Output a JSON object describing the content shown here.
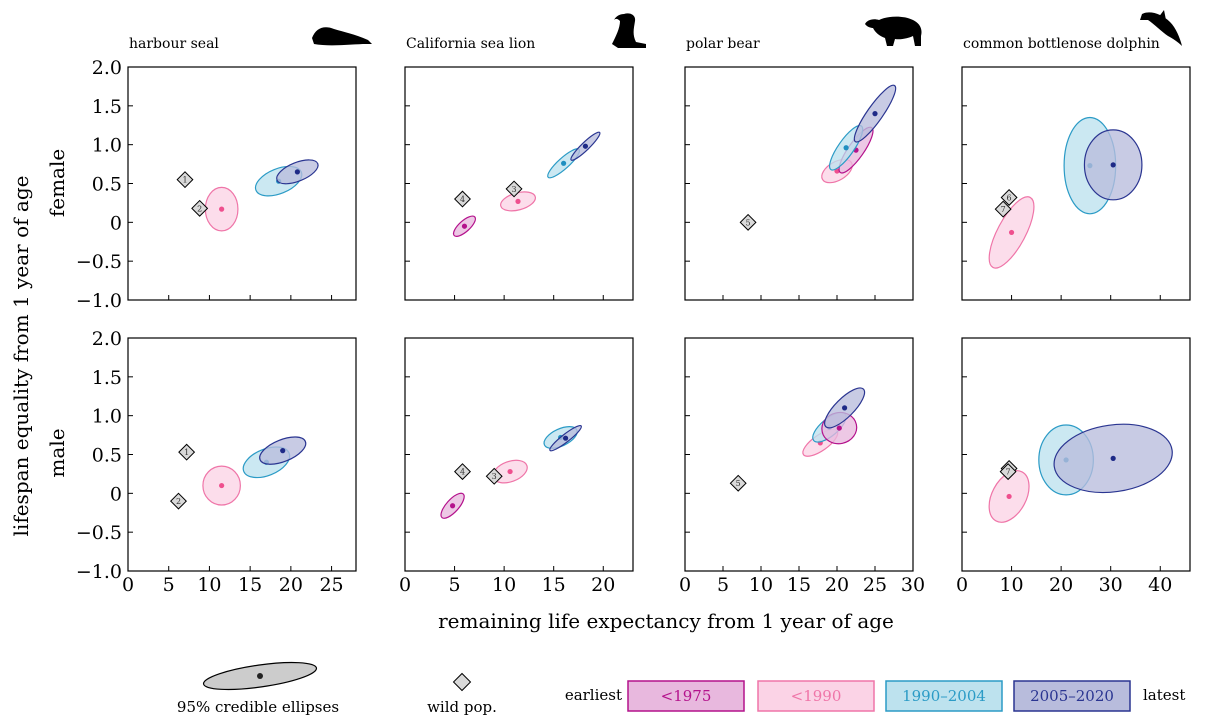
{
  "figure": {
    "xlabel": "remaining life expectancy from 1 year of age",
    "ylabel": "lifespan equality from 1 year of age",
    "row_labels": [
      "female",
      "male"
    ]
  },
  "legend": {
    "ellipse_label": "95% credible ellipses",
    "wild_label": "wild pop.",
    "earliest": "earliest",
    "latest": "latest",
    "periods": [
      {
        "label": "<1975",
        "fill": "#e8b8de",
        "stroke": "#b4128c",
        "dot": "#b4128c"
      },
      {
        "label": "<1990",
        "fill": "#fbd3e6",
        "stroke": "#ef75a8",
        "dot": "#ef4f8e"
      },
      {
        "label": "1990–2004",
        "fill": "#bde2ee",
        "stroke": "#2b9bc6",
        "dot": "#1f8fc0"
      },
      {
        "label": "2005–2020",
        "fill": "#b8bcdc",
        "stroke": "#2a3591",
        "dot": "#1e2a87"
      }
    ]
  },
  "chart_data": [
    {
      "type": "scatter",
      "title": "harbour seal",
      "row": "female",
      "xlim": [
        0,
        28
      ],
      "ylim": [
        -1,
        2
      ],
      "wild": [
        {
          "x": 7,
          "y": 0.55,
          "label": "1"
        },
        {
          "x": 8.8,
          "y": 0.18,
          "label": "2"
        }
      ],
      "ellipses": [
        {
          "period": 1,
          "x": 11.5,
          "y": 0.17,
          "rx": 2.0,
          "ry": 0.28,
          "angle": 0
        },
        {
          "period": 2,
          "x": 18.5,
          "y": 0.53,
          "rx": 3.0,
          "ry": 0.16,
          "angle": 22
        },
        {
          "period": 3,
          "x": 20.8,
          "y": 0.65,
          "rx": 2.7,
          "ry": 0.12,
          "angle": 22
        }
      ]
    },
    {
      "type": "scatter",
      "title": "California sea lion",
      "row": "female",
      "xlim": [
        0,
        23
      ],
      "ylim": [
        -1,
        2
      ],
      "wild": [
        {
          "x": 5.8,
          "y": 0.3,
          "label": "4"
        },
        {
          "x": 11,
          "y": 0.43,
          "label": "3"
        }
      ],
      "ellipses": [
        {
          "period": 0,
          "x": 6.0,
          "y": -0.05,
          "rx": 1.4,
          "ry": 0.07,
          "angle": 42
        },
        {
          "period": 1,
          "x": 11.4,
          "y": 0.27,
          "rx": 1.8,
          "ry": 0.11,
          "angle": 15
        },
        {
          "period": 2,
          "x": 16.0,
          "y": 0.76,
          "rx": 2.1,
          "ry": 0.07,
          "angle": 42
        },
        {
          "period": 3,
          "x": 18.2,
          "y": 0.98,
          "rx": 2.0,
          "ry": 0.05,
          "angle": 44
        }
      ]
    },
    {
      "type": "scatter",
      "title": "polar bear",
      "row": "female",
      "xlim": [
        0,
        30
      ],
      "ylim": [
        -1,
        2
      ],
      "wild": [
        {
          "x": 8.3,
          "y": 0.0,
          "label": "5"
        }
      ],
      "ellipses": [
        {
          "period": 1,
          "x": 20.0,
          "y": 0.66,
          "rx": 2.2,
          "ry": 0.12,
          "angle": 30
        },
        {
          "period": 0,
          "x": 22.5,
          "y": 0.93,
          "rx": 3.6,
          "ry": 0.1,
          "angle": 55
        },
        {
          "period": 2,
          "x": 21.2,
          "y": 0.96,
          "rx": 3.5,
          "ry": 0.1,
          "angle": 55
        },
        {
          "period": 3,
          "x": 25.0,
          "y": 1.4,
          "rx": 4.5,
          "ry": 0.1,
          "angle": 55
        }
      ]
    },
    {
      "type": "scatter",
      "title": "common bottlenose dolphin",
      "row": "female",
      "xlim": [
        0,
        46
      ],
      "ylim": [
        -1,
        2
      ],
      "wild": [
        {
          "x": 9.5,
          "y": 0.32,
          "label": "6"
        },
        {
          "x": 8.3,
          "y": 0.17,
          "label": "7"
        }
      ],
      "ellipses": [
        {
          "period": 1,
          "x": 10.0,
          "y": -0.13,
          "rx": 8.0,
          "ry": 0.18,
          "angle": 62
        },
        {
          "period": 2,
          "x": 25.8,
          "y": 0.73,
          "rx": 5.2,
          "ry": 0.62,
          "angle": 0
        },
        {
          "period": 3,
          "x": 30.5,
          "y": 0.74,
          "rx": 5.8,
          "ry": 0.45,
          "angle": 0
        }
      ]
    },
    {
      "type": "scatter",
      "title": "harbour seal",
      "row": "male",
      "xlim": [
        0,
        28
      ],
      "ylim": [
        -1,
        2
      ],
      "wild": [
        {
          "x": 7.2,
          "y": 0.53,
          "label": "1"
        },
        {
          "x": 6.2,
          "y": -0.1,
          "label": "2"
        }
      ],
      "ellipses": [
        {
          "period": 1,
          "x": 11.5,
          "y": 0.1,
          "rx": 2.3,
          "ry": 0.25,
          "angle": 0
        },
        {
          "period": 2,
          "x": 17.0,
          "y": 0.4,
          "rx": 3.0,
          "ry": 0.17,
          "angle": 22
        },
        {
          "period": 3,
          "x": 19.0,
          "y": 0.55,
          "rx": 3.0,
          "ry": 0.14,
          "angle": 22
        }
      ]
    },
    {
      "type": "scatter",
      "title": "California sea lion",
      "row": "male",
      "xlim": [
        0,
        23
      ],
      "ylim": [
        -1,
        2
      ],
      "wild": [
        {
          "x": 5.8,
          "y": 0.28,
          "label": "4"
        },
        {
          "x": 9.0,
          "y": 0.22,
          "label": "3"
        }
      ],
      "ellipses": [
        {
          "period": 0,
          "x": 4.8,
          "y": -0.16,
          "rx": 1.6,
          "ry": 0.08,
          "angle": 48
        },
        {
          "period": 1,
          "x": 10.6,
          "y": 0.28,
          "rx": 1.8,
          "ry": 0.13,
          "angle": 20
        },
        {
          "period": 2,
          "x": 15.7,
          "y": 0.72,
          "rx": 1.8,
          "ry": 0.11,
          "angle": 25
        },
        {
          "period": 3,
          "x": 16.2,
          "y": 0.71,
          "rx": 2.0,
          "ry": 0.05,
          "angle": 38
        }
      ]
    },
    {
      "type": "scatter",
      "title": "polar bear",
      "row": "male",
      "xlim": [
        0,
        30
      ],
      "ylim": [
        -1,
        2
      ],
      "wild": [
        {
          "x": 7.0,
          "y": 0.13,
          "label": "5"
        }
      ],
      "ellipses": [
        {
          "period": 1,
          "x": 17.8,
          "y": 0.65,
          "rx": 2.7,
          "ry": 0.1,
          "angle": 35
        },
        {
          "period": 2,
          "x": 19.0,
          "y": 0.85,
          "rx": 2.7,
          "ry": 0.11,
          "angle": 40
        },
        {
          "period": 0,
          "x": 20.3,
          "y": 0.84,
          "rx": 2.3,
          "ry": 0.2,
          "angle": 12
        },
        {
          "period": 3,
          "x": 21.0,
          "y": 1.1,
          "rx": 3.5,
          "ry": 0.12,
          "angle": 45
        }
      ]
    },
    {
      "type": "scatter",
      "title": "common bottlenose dolphin",
      "row": "male",
      "xlim": [
        0,
        46
      ],
      "ylim": [
        -1,
        2
      ],
      "wild": [
        {
          "x": 9.5,
          "y": 0.32,
          "label": "6"
        },
        {
          "x": 9.3,
          "y": 0.28,
          "label": "7"
        }
      ],
      "ellipses": [
        {
          "period": 1,
          "x": 9.5,
          "y": -0.04,
          "rx": 5.6,
          "ry": 0.22,
          "angle": 62
        },
        {
          "period": 2,
          "x": 21.0,
          "y": 0.43,
          "rx": 5.5,
          "ry": 0.45,
          "angle": 0
        },
        {
          "period": 3,
          "x": 30.5,
          "y": 0.45,
          "rx": 12.0,
          "ry": 0.43,
          "angle": 8
        }
      ]
    }
  ]
}
